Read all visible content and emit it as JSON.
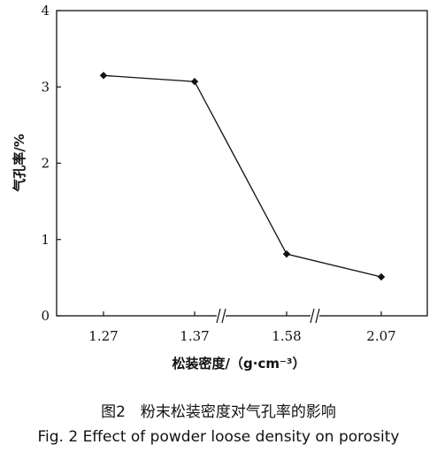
{
  "chart_data": {
    "type": "line",
    "categories": [
      "1.27",
      "1.37",
      "1.58",
      "2.07"
    ],
    "values": [
      3.15,
      3.07,
      0.81,
      0.51
    ],
    "xlabel": "松装密度/（g·cm⁻³）",
    "ylabel": "气孔率/%",
    "ylim": [
      0,
      4
    ],
    "yticks": [
      "0",
      "1",
      "2",
      "3",
      "4"
    ],
    "axis_breaks": "between 1.37–1.58 and 1.58–2.07",
    "grid": false,
    "marker": "diamond",
    "color": "#111111"
  },
  "caption": {
    "zh": "图2　粉末松装密度对气孔率的影响",
    "en": "Fig. 2 Effect of powder loose density on porosity"
  }
}
